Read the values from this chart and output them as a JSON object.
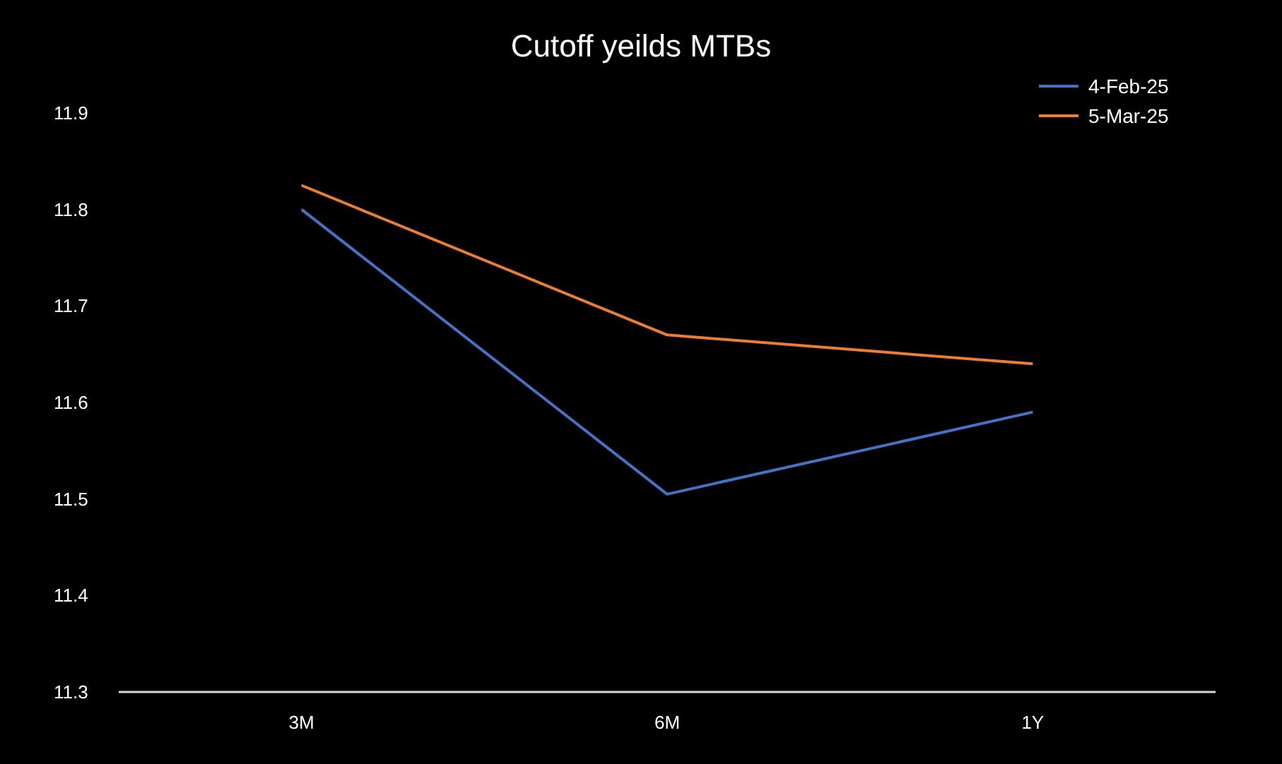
{
  "chart_data": {
    "type": "line",
    "title": "Cutoff yeilds MTBs",
    "categories": [
      "3M",
      "6M",
      "1Y"
    ],
    "series": [
      {
        "name": "4-Feb-25",
        "color": "#4472c4",
        "values": [
          11.8,
          11.505,
          11.59
        ]
      },
      {
        "name": "5-Mar-25",
        "color": "#ed7d31",
        "values": [
          11.825,
          11.67,
          11.64
        ]
      }
    ],
    "ylim": [
      11.3,
      11.9
    ],
    "yticks": [
      11.3,
      11.4,
      11.5,
      11.6,
      11.7,
      11.8,
      11.9
    ],
    "grid": false,
    "legend": "top right",
    "marker": "none",
    "line_style": "solid"
  }
}
